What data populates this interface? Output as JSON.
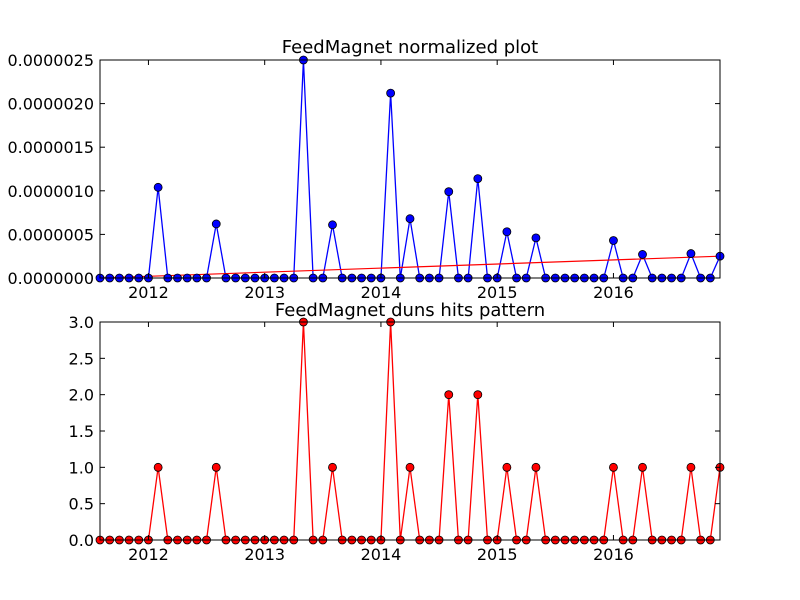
{
  "chart_data": [
    {
      "type": "line",
      "title": "FeedMagnet normalized plot",
      "xlabel": "",
      "ylabel": "",
      "xlim": [
        "2011-08",
        "2016-12"
      ],
      "ylim": [
        0,
        2.5e-06
      ],
      "x_tick_labels": [
        "2012",
        "2013",
        "2014",
        "2015",
        "2016"
      ],
      "y_tick_labels": [
        "0.0000000",
        "0.0000005",
        "0.0000010",
        "0.0000015",
        "0.0000020",
        "0.0000025"
      ],
      "grid": false,
      "colors": {
        "line": "#0000ff",
        "marker": "#0000ff",
        "trend": "#ff0000"
      },
      "x": [
        "2011-08",
        "2011-09",
        "2011-10",
        "2011-11",
        "2011-12",
        "2012-01",
        "2012-02",
        "2012-03",
        "2012-04",
        "2012-05",
        "2012-06",
        "2012-07",
        "2012-08",
        "2012-09",
        "2012-10",
        "2012-11",
        "2012-12",
        "2013-01",
        "2013-02",
        "2013-03",
        "2013-04",
        "2013-05",
        "2013-06",
        "2013-07",
        "2013-08",
        "2013-09",
        "2013-10",
        "2013-11",
        "2013-12",
        "2014-01",
        "2014-02",
        "2014-03",
        "2014-04",
        "2014-05",
        "2014-06",
        "2014-07",
        "2014-08",
        "2014-09",
        "2014-10",
        "2014-11",
        "2014-12",
        "2015-01",
        "2015-02",
        "2015-03",
        "2015-04",
        "2015-05",
        "2015-06",
        "2015-07",
        "2015-08",
        "2015-09",
        "2015-10",
        "2015-11",
        "2015-12",
        "2016-01",
        "2016-02",
        "2016-03",
        "2016-04",
        "2016-05",
        "2016-06",
        "2016-07",
        "2016-08",
        "2016-09",
        "2016-10",
        "2016-11",
        "2016-12"
      ],
      "series": [
        {
          "values": [
            0,
            0,
            0,
            0,
            0,
            0,
            1.04e-06,
            0,
            0,
            0,
            0,
            0,
            6.2e-07,
            0,
            0,
            0,
            0,
            0,
            0,
            0,
            0,
            2.5e-06,
            0,
            0,
            6.1e-07,
            0,
            0,
            0,
            0,
            0,
            2.12e-06,
            0,
            6.8e-07,
            0,
            0,
            0,
            9.9e-07,
            0,
            0,
            1.14e-06,
            0,
            0,
            5.3e-07,
            0,
            0,
            4.6e-07,
            0,
            0,
            0,
            0,
            0,
            0,
            0,
            4.3e-07,
            0,
            0,
            2.7e-07,
            0,
            0,
            0,
            0,
            2.8e-07,
            0,
            0,
            2.5e-07
          ]
        }
      ],
      "trend_line": {
        "x": [
          "2011-08",
          "2016-12"
        ],
        "y": [
          0,
          2.5e-07
        ]
      }
    },
    {
      "type": "line",
      "title": "FeedMagnet duns hits pattern",
      "xlabel": "",
      "ylabel": "",
      "xlim": [
        "2011-08",
        "2016-12"
      ],
      "ylim": [
        0,
        3.0
      ],
      "x_tick_labels": [
        "2012",
        "2013",
        "2014",
        "2015",
        "2016"
      ],
      "y_tick_labels": [
        "0.0",
        "0.5",
        "1.0",
        "1.5",
        "2.0",
        "2.5",
        "3.0"
      ],
      "grid": false,
      "colors": {
        "line": "#ff0000",
        "marker": "#ff0000"
      },
      "x": [
        "2011-08",
        "2011-09",
        "2011-10",
        "2011-11",
        "2011-12",
        "2012-01",
        "2012-02",
        "2012-03",
        "2012-04",
        "2012-05",
        "2012-06",
        "2012-07",
        "2012-08",
        "2012-09",
        "2012-10",
        "2012-11",
        "2012-12",
        "2013-01",
        "2013-02",
        "2013-03",
        "2013-04",
        "2013-05",
        "2013-06",
        "2013-07",
        "2013-08",
        "2013-09",
        "2013-10",
        "2013-11",
        "2013-12",
        "2014-01",
        "2014-02",
        "2014-03",
        "2014-04",
        "2014-05",
        "2014-06",
        "2014-07",
        "2014-08",
        "2014-09",
        "2014-10",
        "2014-11",
        "2014-12",
        "2015-01",
        "2015-02",
        "2015-03",
        "2015-04",
        "2015-05",
        "2015-06",
        "2015-07",
        "2015-08",
        "2015-09",
        "2015-10",
        "2015-11",
        "2015-12",
        "2016-01",
        "2016-02",
        "2016-03",
        "2016-04",
        "2016-05",
        "2016-06",
        "2016-07",
        "2016-08",
        "2016-09",
        "2016-10",
        "2016-11",
        "2016-12"
      ],
      "series": [
        {
          "values": [
            0,
            0,
            0,
            0,
            0,
            0,
            1,
            0,
            0,
            0,
            0,
            0,
            1,
            0,
            0,
            0,
            0,
            0,
            0,
            0,
            0,
            3,
            0,
            0,
            1,
            0,
            0,
            0,
            0,
            0,
            3,
            0,
            1,
            0,
            0,
            0,
            2,
            0,
            0,
            2,
            0,
            0,
            1,
            0,
            0,
            1,
            0,
            0,
            0,
            0,
            0,
            0,
            0,
            1,
            0,
            0,
            1,
            0,
            0,
            0,
            0,
            1,
            0,
            0,
            1
          ]
        }
      ]
    }
  ]
}
